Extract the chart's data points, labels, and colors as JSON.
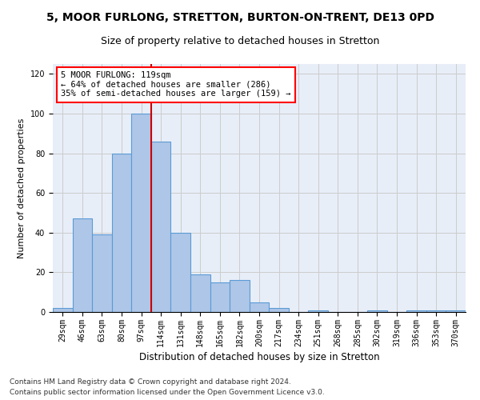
{
  "title_line1": "5, MOOR FURLONG, STRETTON, BURTON-ON-TRENT, DE13 0PD",
  "title_line2": "Size of property relative to detached houses in Stretton",
  "xlabel": "Distribution of detached houses by size in Stretton",
  "ylabel": "Number of detached properties",
  "categories": [
    "29sqm",
    "46sqm",
    "63sqm",
    "80sqm",
    "97sqm",
    "114sqm",
    "131sqm",
    "148sqm",
    "165sqm",
    "182sqm",
    "200sqm",
    "217sqm",
    "234sqm",
    "251sqm",
    "268sqm",
    "285sqm",
    "302sqm",
    "319sqm",
    "336sqm",
    "353sqm",
    "370sqm"
  ],
  "values": [
    2,
    47,
    39,
    80,
    100,
    86,
    40,
    19,
    15,
    16,
    5,
    2,
    0,
    1,
    0,
    0,
    1,
    0,
    1,
    1,
    1
  ],
  "bar_color": "#aec6e8",
  "bar_edge_color": "#5b9bd5",
  "vline_index": 4.5,
  "annotation_line1": "5 MOOR FURLONG: 119sqm",
  "annotation_line2": "← 64% of detached houses are smaller (286)",
  "annotation_line3": "35% of semi-detached houses are larger (159) →",
  "annotation_box_color": "white",
  "annotation_box_edge": "red",
  "vline_color": "#cc0000",
  "ylim": [
    0,
    125
  ],
  "yticks": [
    0,
    20,
    40,
    60,
    80,
    100,
    120
  ],
  "grid_color": "#cccccc",
  "bg_color": "#e8eef8",
  "footer_line1": "Contains HM Land Registry data © Crown copyright and database right 2024.",
  "footer_line2": "Contains public sector information licensed under the Open Government Licence v3.0.",
  "title1_fontsize": 10,
  "title2_fontsize": 9,
  "xlabel_fontsize": 8.5,
  "ylabel_fontsize": 8,
  "tick_fontsize": 7,
  "footer_fontsize": 6.5,
  "annotation_fontsize": 7.5
}
